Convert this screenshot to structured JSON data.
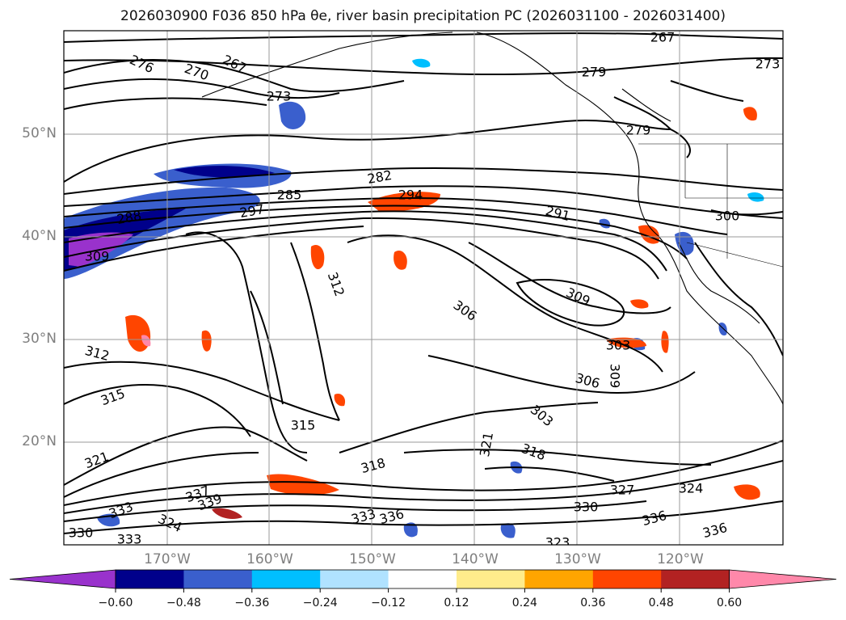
{
  "title": "2026030900 F036 850 hPa θe, river basin precipitation PC (2026031100 - 2026031400)",
  "map": {
    "lat_labels": [
      "50°N",
      "40°N",
      "30°N",
      "20°N"
    ],
    "lat_values": [
      50,
      40,
      30,
      20
    ],
    "lon_labels": [
      "170°W",
      "160°W",
      "150°W",
      "140°W",
      "130°W",
      "120°W"
    ],
    "lon_values": [
      -170,
      -160,
      -150,
      -140,
      -130,
      -120
    ],
    "contour_labels": [
      "276",
      "270",
      "267",
      "273",
      "267",
      "273",
      "279",
      "279",
      "282",
      "285",
      "294",
      "288",
      "297",
      "291",
      "300",
      "309",
      "312",
      "306",
      "309",
      "303",
      "309",
      "306",
      "312",
      "315",
      "303",
      "315",
      "321",
      "318",
      "321",
      "318",
      "333",
      "324",
      "327",
      "330",
      "336",
      "333",
      "324",
      "336",
      "339",
      "337",
      "333",
      "330",
      "336",
      "323"
    ]
  },
  "colorbar": {
    "ticks": [
      "−0.60",
      "−0.48",
      "−0.36",
      "−0.24",
      "−0.12",
      "0.12",
      "0.24",
      "0.36",
      "0.48",
      "0.60"
    ],
    "colors": [
      "#9932cc",
      "#00008b",
      "#3a5fcd",
      "#00bfff",
      "#b0e2ff",
      "#ffffff",
      "#ffec8b",
      "#ffa500",
      "#ff4500",
      "#b22222",
      "#ff88aa"
    ]
  }
}
